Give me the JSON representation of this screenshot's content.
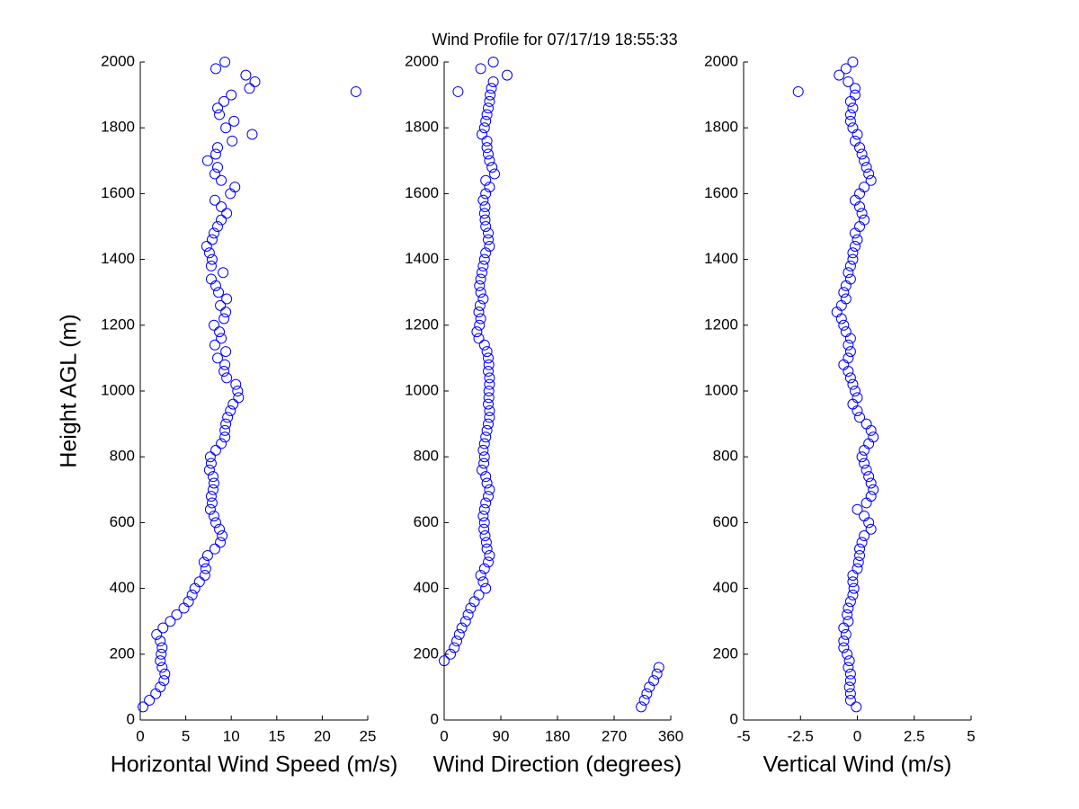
{
  "chart_data": [
    {
      "type": "scatter",
      "xlabel": "Horizontal Wind Speed (m/s)",
      "ylabel": "Height AGL (m)",
      "color": "#0000ff",
      "xlim": [
        0,
        25
      ],
      "ylim": [
        0,
        2000
      ],
      "xticks": [
        0,
        5,
        10,
        15,
        20,
        25
      ],
      "yticks": [
        0,
        200,
        400,
        600,
        800,
        1000,
        1200,
        1400,
        1600,
        1800,
        2000
      ],
      "x": [
        0.3,
        1,
        1.7,
        2.2,
        2.6,
        2.7,
        2.4,
        2.2,
        2.3,
        2.4,
        2.2,
        1.8,
        2.5,
        3.3,
        4.0,
        4.8,
        5.3,
        5.7,
        6.0,
        6.5,
        7.1,
        7.2,
        7.0,
        7.4,
        8.2,
        8.8,
        9.0,
        8.7,
        8.3,
        8.1,
        7.7,
        7.9,
        7.8,
        8.0,
        8.1,
        8.0,
        7.6,
        7.8,
        7.7,
        8.3,
        8.9,
        9.3,
        9.3,
        9.4,
        9.6,
        9.9,
        10.2,
        10.8,
        10.7,
        10.5,
        9.5,
        9.2,
        9.3,
        8.5,
        9.4,
        8.2,
        8.9,
        8.7,
        8.1,
        9.2,
        9.4,
        8.8,
        9.5,
        8.6,
        8.3,
        7.8,
        9.1,
        7.8,
        7.9,
        7.6,
        7.3,
        7.9,
        8.1,
        8.5,
        8.9,
        9.5,
        8.9,
        8.2,
        9.9,
        10.4,
        8.9,
        8.2,
        8.5,
        7.4,
        8.3,
        8.5,
        10.1,
        12.3,
        9.4,
        10.3,
        8.7,
        8.5,
        9.2,
        10.0,
        12.0,
        12.6,
        11.6,
        8.3,
        9.3,
        23.7
      ],
      "y": [
        40,
        60,
        80,
        100,
        120,
        140,
        160,
        180,
        200,
        220,
        240,
        260,
        280,
        300,
        320,
        340,
        360,
        380,
        400,
        420,
        440,
        460,
        480,
        500,
        520,
        540,
        560,
        580,
        600,
        620,
        640,
        660,
        680,
        700,
        720,
        740,
        760,
        780,
        800,
        820,
        840,
        860,
        880,
        900,
        920,
        940,
        960,
        980,
        1000,
        1020,
        1040,
        1060,
        1080,
        1100,
        1120,
        1140,
        1160,
        1180,
        1200,
        1220,
        1240,
        1260,
        1280,
        1300,
        1320,
        1340,
        1360,
        1380,
        1400,
        1420,
        1440,
        1460,
        1480,
        1500,
        1520,
        1540,
        1560,
        1580,
        1600,
        1620,
        1640,
        1660,
        1680,
        1700,
        1720,
        1740,
        1760,
        1780,
        1800,
        1820,
        1840,
        1860,
        1880,
        1900,
        1920,
        1940,
        1960,
        1980,
        2000,
        1910
      ]
    },
    {
      "type": "scatter",
      "title": "Wind Profile for  07/17/19 18:55:33",
      "xlabel": "Wind Direction (degrees)",
      "color": "#0000ff",
      "xlim": [
        0,
        360
      ],
      "ylim": [
        0,
        2000
      ],
      "xticks": [
        0,
        90,
        180,
        270,
        360
      ],
      "yticks": [
        0,
        200,
        400,
        600,
        800,
        1000,
        1200,
        1400,
        1600,
        1800,
        2000
      ],
      "x": [
        313,
        318,
        322,
        326,
        333,
        338,
        341,
        0,
        10,
        16,
        20,
        24,
        28,
        34,
        38,
        42,
        48,
        55,
        66,
        62,
        58,
        64,
        70,
        72,
        68,
        67,
        65,
        63,
        64,
        62,
        64,
        66,
        70,
        72,
        68,
        66,
        60,
        63,
        64,
        62,
        64,
        66,
        68,
        70,
        72,
        72,
        70,
        71,
        71,
        72,
        72,
        70,
        71,
        70,
        68,
        64,
        55,
        52,
        56,
        58,
        55,
        57,
        62,
        58,
        56,
        58,
        60,
        62,
        64,
        66,
        72,
        70,
        70,
        66,
        65,
        64,
        65,
        62,
        66,
        72,
        66,
        80,
        76,
        72,
        70,
        68,
        68,
        60,
        64,
        66,
        68,
        70,
        72,
        73,
        75,
        78,
        100,
        58,
        78,
        22
      ],
      "y": [
        40,
        60,
        80,
        100,
        120,
        140,
        160,
        180,
        200,
        220,
        240,
        260,
        280,
        300,
        320,
        340,
        360,
        380,
        400,
        420,
        440,
        460,
        480,
        500,
        520,
        540,
        560,
        580,
        600,
        620,
        640,
        660,
        680,
        700,
        720,
        740,
        760,
        780,
        800,
        820,
        840,
        860,
        880,
        900,
        920,
        940,
        960,
        980,
        1000,
        1020,
        1040,
        1060,
        1080,
        1100,
        1120,
        1140,
        1160,
        1180,
        1200,
        1220,
        1240,
        1260,
        1280,
        1300,
        1320,
        1340,
        1360,
        1380,
        1400,
        1420,
        1440,
        1460,
        1480,
        1500,
        1520,
        1540,
        1560,
        1580,
        1600,
        1620,
        1640,
        1660,
        1680,
        1700,
        1720,
        1740,
        1760,
        1780,
        1800,
        1820,
        1840,
        1860,
        1880,
        1900,
        1920,
        1940,
        1960,
        1980,
        2000,
        1910
      ]
    },
    {
      "type": "scatter",
      "xlabel": "Vertical Wind (m/s)",
      "color": "#0000ff",
      "xlim": [
        -5,
        5
      ],
      "ylim": [
        0,
        2000
      ],
      "xticks": [
        -5,
        -2.5,
        0,
        2.5,
        5
      ],
      "yticks": [
        0,
        200,
        400,
        600,
        800,
        1000,
        1200,
        1400,
        1600,
        1800,
        2000
      ],
      "x": [
        -0.05,
        -0.3,
        -0.3,
        -0.35,
        -0.3,
        -0.3,
        -0.4,
        -0.35,
        -0.45,
        -0.6,
        -0.6,
        -0.5,
        -0.6,
        -0.4,
        -0.45,
        -0.4,
        -0.3,
        -0.2,
        -0.15,
        -0.2,
        -0.2,
        0,
        0.05,
        0.1,
        0.1,
        0.2,
        0.3,
        0.6,
        0.5,
        0.3,
        0,
        0.4,
        0.6,
        0.7,
        0.6,
        0.5,
        0.4,
        0.3,
        0.2,
        0.3,
        0.5,
        0.7,
        0.6,
        0.4,
        0.1,
        0,
        -0.2,
        0,
        -0.1,
        -0.2,
        -0.3,
        -0.4,
        -0.6,
        -0.4,
        -0.3,
        -0.4,
        -0.3,
        -0.5,
        -0.6,
        -0.7,
        -0.9,
        -0.7,
        -0.5,
        -0.6,
        -0.5,
        -0.3,
        -0.4,
        -0.3,
        -0.2,
        -0.2,
        -0.1,
        0,
        -0.1,
        0.1,
        0.3,
        0.2,
        0.1,
        -0.1,
        0.1,
        0.3,
        0.6,
        0.5,
        0.4,
        0.3,
        0.2,
        0.1,
        -0.1,
        0,
        -0.2,
        -0.3,
        -0.3,
        -0.2,
        -0.3,
        -0.1,
        -0.1,
        -0.4,
        -0.8,
        -0.5,
        -0.2,
        -2.6
      ],
      "y": [
        40,
        60,
        80,
        100,
        120,
        140,
        160,
        180,
        200,
        220,
        240,
        260,
        280,
        300,
        320,
        340,
        360,
        380,
        400,
        420,
        440,
        460,
        480,
        500,
        520,
        540,
        560,
        580,
        600,
        620,
        640,
        660,
        680,
        700,
        720,
        740,
        760,
        780,
        800,
        820,
        840,
        860,
        880,
        900,
        920,
        940,
        960,
        980,
        1000,
        1020,
        1040,
        1060,
        1080,
        1100,
        1120,
        1140,
        1160,
        1180,
        1200,
        1220,
        1240,
        1260,
        1280,
        1300,
        1320,
        1340,
        1360,
        1380,
        1400,
        1420,
        1440,
        1460,
        1480,
        1500,
        1520,
        1540,
        1560,
        1580,
        1600,
        1620,
        1640,
        1660,
        1680,
        1700,
        1720,
        1740,
        1760,
        1780,
        1800,
        1820,
        1840,
        1860,
        1880,
        1900,
        1920,
        1940,
        1960,
        1980,
        2000,
        1910
      ]
    }
  ]
}
